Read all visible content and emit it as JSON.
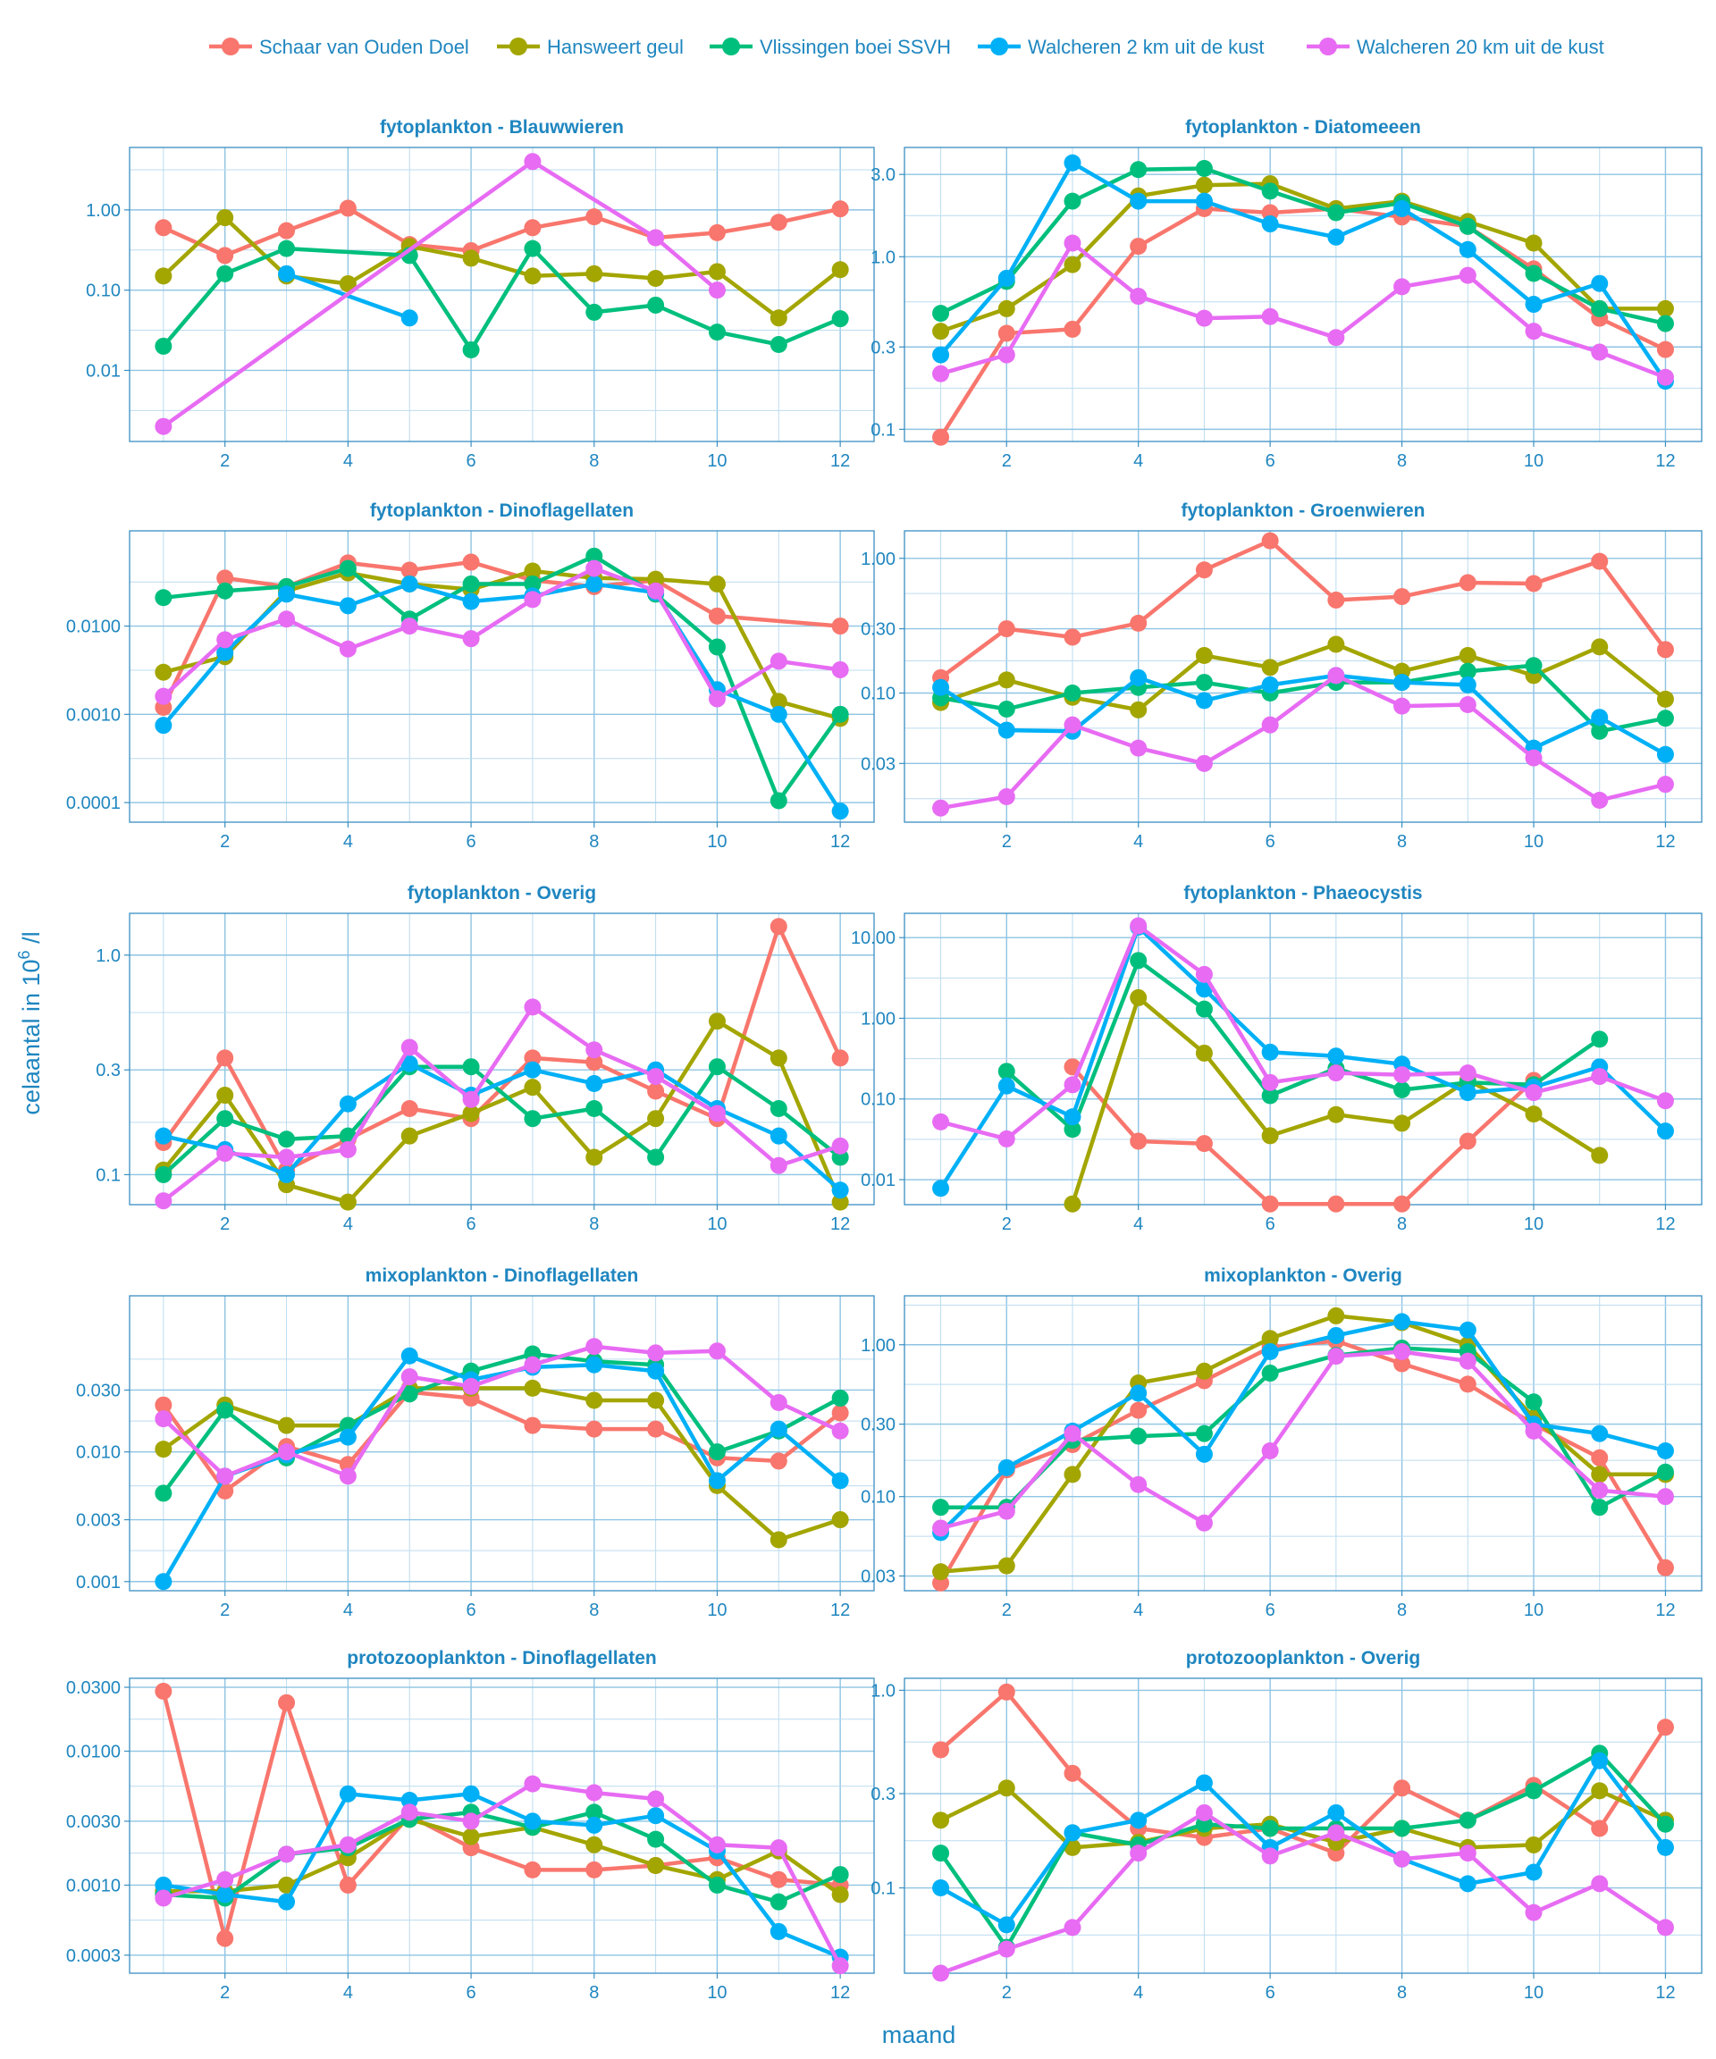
{
  "chart_data": {
    "type": "line",
    "xlabel": "maand",
    "ylabel_prefix": "celaantal in ",
    "ylabel_base": "10",
    "ylabel_exp": "6",
    "ylabel_suffix": " /l",
    "x_ticks": [
      2,
      4,
      6,
      8,
      10,
      12
    ],
    "x_range": [
      0.45,
      12.55
    ],
    "yscale": "log10",
    "series_info": [
      {
        "name": "Schaar van Ouden Doel",
        "color": "#F8766D"
      },
      {
        "name": "Hansweert geul",
        "color": "#A3A500"
      },
      {
        "name": "Vlissingen boei SSVH",
        "color": "#00BF7D"
      },
      {
        "name": "Walcheren 2 km uit de kust",
        "color": "#00B0F6"
      },
      {
        "name": "Walcheren 20 km uit de kust",
        "color": "#E76BF3"
      }
    ],
    "panels": [
      {
        "title": "fytoplankton - Blauwwieren",
        "ylim": [
          0.0013,
          6
        ],
        "ytick_values": [
          0.01,
          0.1,
          1
        ],
        "ytick_labels": [
          "0.01",
          "0.10",
          "1.00"
        ],
        "series": [
          [
            0.6,
            0.27,
            0.55,
            1.05,
            0.37,
            0.31,
            0.6,
            0.82,
            0.45,
            0.52,
            0.7,
            1.03
          ],
          [
            0.15,
            0.8,
            0.15,
            0.12,
            0.35,
            0.25,
            0.15,
            0.16,
            0.14,
            0.17,
            0.045,
            0.18
          ],
          [
            0.02,
            0.16,
            0.33,
            null,
            0.27,
            0.018,
            0.33,
            0.053,
            0.065,
            0.03,
            0.021,
            0.044
          ],
          [
            null,
            null,
            0.16,
            null,
            0.045,
            null,
            null,
            null,
            null,
            null,
            null,
            null
          ],
          [
            0.002,
            null,
            null,
            null,
            null,
            null,
            4.0,
            null,
            0.45,
            0.1,
            null,
            null
          ]
        ]
      },
      {
        "title": "fytoplankton - Diatomeeen",
        "ylim": [
          0.085,
          4.3
        ],
        "ytick_values": [
          0.1,
          0.3,
          1,
          3
        ],
        "ytick_labels": [
          "0.1",
          "0.3",
          "1.0",
          "3.0"
        ],
        "series": [
          [
            0.09,
            0.36,
            0.38,
            1.15,
            1.9,
            1.8,
            1.9,
            1.7,
            1.5,
            0.85,
            0.44,
            0.29
          ],
          [
            0.37,
            0.5,
            0.9,
            2.25,
            2.6,
            2.65,
            1.9,
            2.1,
            1.6,
            1.2,
            0.5,
            0.5
          ],
          [
            0.47,
            0.72,
            2.1,
            3.2,
            3.25,
            2.4,
            1.8,
            2.05,
            1.5,
            0.8,
            0.5,
            0.41
          ],
          [
            0.27,
            0.75,
            3.5,
            2.1,
            2.1,
            1.55,
            1.3,
            1.9,
            1.1,
            0.53,
            0.7,
            0.19
          ],
          [
            0.21,
            0.27,
            1.2,
            0.59,
            0.44,
            0.45,
            0.34,
            0.67,
            0.78,
            0.37,
            0.28,
            0.2
          ]
        ]
      },
      {
        "title": "fytoplankton - Dinoflagellaten",
        "ylim": [
          6e-05,
          0.12
        ],
        "ytick_values": [
          0.0001,
          0.001,
          0.01
        ],
        "ytick_labels": [
          "0.0001",
          "0.0010",
          "0.0100"
        ],
        "series": [
          [
            0.0012,
            0.035,
            0.028,
            0.052,
            0.043,
            0.053,
            0.033,
            0.028,
            0.033,
            0.013,
            null,
            0.01
          ],
          [
            0.003,
            0.0045,
            0.025,
            0.04,
            0.03,
            0.026,
            0.042,
            0.035,
            0.034,
            0.03,
            0.0014,
            0.0009
          ],
          [
            0.021,
            0.025,
            0.028,
            0.045,
            0.012,
            0.03,
            0.03,
            0.062,
            0.023,
            0.0058,
            0.000105,
            0.001
          ],
          [
            0.00075,
            0.005,
            0.023,
            0.017,
            0.03,
            0.019,
            0.022,
            0.03,
            0.024,
            0.0019,
            0.001,
            8e-05
          ],
          [
            0.0016,
            0.007,
            0.012,
            0.0055,
            0.01,
            0.0072,
            0.02,
            0.045,
            0.025,
            0.0015,
            0.004,
            0.0032
          ]
        ]
      },
      {
        "title": "fytoplankton - Groenwieren",
        "ylim": [
          0.011,
          1.6
        ],
        "ytick_values": [
          0.03,
          0.1,
          0.3,
          1
        ],
        "ytick_labels": [
          "0.03",
          "0.10",
          "0.30",
          "1.00"
        ],
        "series": [
          [
            0.13,
            0.3,
            0.26,
            0.33,
            0.82,
            1.35,
            0.49,
            0.52,
            0.66,
            0.65,
            0.95,
            0.21
          ],
          [
            0.085,
            0.125,
            0.093,
            0.075,
            0.19,
            0.155,
            0.23,
            0.145,
            0.19,
            0.135,
            0.22,
            0.09
          ],
          [
            0.092,
            0.076,
            0.1,
            0.11,
            0.12,
            0.1,
            0.12,
            0.12,
            0.145,
            0.16,
            0.052,
            0.065
          ],
          [
            0.11,
            0.053,
            0.052,
            0.13,
            0.088,
            0.115,
            0.135,
            0.12,
            0.115,
            0.039,
            0.066,
            0.035
          ],
          [
            0.014,
            0.017,
            0.058,
            0.039,
            0.03,
            0.058,
            0.135,
            0.08,
            0.082,
            0.033,
            0.016,
            0.021
          ]
        ]
      },
      {
        "title": "fytoplankton - Overig",
        "ylim": [
          0.073,
          1.55
        ],
        "ytick_values": [
          0.1,
          0.3,
          1
        ],
        "ytick_labels": [
          "0.1",
          "0.3",
          "1.0"
        ],
        "series": [
          [
            0.14,
            0.34,
            0.105,
            0.145,
            0.2,
            0.18,
            0.34,
            0.325,
            0.24,
            0.18,
            1.35,
            0.34
          ],
          [
            0.105,
            0.23,
            0.09,
            0.075,
            0.15,
            0.19,
            0.25,
            0.12,
            0.18,
            0.5,
            0.34,
            0.075
          ],
          [
            0.1,
            0.18,
            0.145,
            0.15,
            0.31,
            0.31,
            0.18,
            0.2,
            0.12,
            0.31,
            0.2,
            0.12
          ],
          [
            0.15,
            0.13,
            0.1,
            0.21,
            0.32,
            0.23,
            0.3,
            0.26,
            0.3,
            0.2,
            0.15,
            0.085
          ],
          [
            0.076,
            0.125,
            0.12,
            0.13,
            0.38,
            0.22,
            0.58,
            0.37,
            0.28,
            0.19,
            0.11,
            0.135
          ]
        ]
      },
      {
        "title": "fytoplankton - Phaeocystis",
        "ylim": [
          0.0049,
          20
        ],
        "ytick_values": [
          0.01,
          0.1,
          1,
          10
        ],
        "ytick_labels": [
          "0.01",
          "0.10",
          "1.00",
          "10.00"
        ],
        "series": [
          [
            null,
            null,
            0.25,
            0.03,
            0.028,
            0.005,
            0.005,
            0.005,
            0.03,
            0.17,
            null,
            null
          ],
          [
            null,
            null,
            0.005,
            1.8,
            0.37,
            0.035,
            0.064,
            0.05,
            0.17,
            0.065,
            0.02,
            null
          ],
          [
            null,
            0.22,
            0.042,
            5.2,
            1.3,
            0.11,
            0.24,
            0.13,
            0.16,
            0.15,
            0.55,
            null
          ],
          [
            0.0078,
            0.145,
            0.06,
            13.5,
            2.3,
            0.38,
            0.34,
            0.27,
            0.12,
            0.14,
            0.25,
            0.04
          ],
          [
            0.052,
            0.032,
            0.15,
            14,
            3.5,
            0.16,
            0.21,
            0.2,
            0.21,
            0.12,
            0.19,
            0.095
          ]
        ]
      },
      {
        "title": "mixoplankton - Dinoflagellaten",
        "ylim": [
          0.00085,
          0.16
        ],
        "ytick_values": [
          0.001,
          0.003,
          0.01,
          0.03
        ],
        "ytick_labels": [
          "0.001",
          "0.003",
          "0.010",
          "0.030"
        ],
        "series": [
          [
            0.023,
            0.005,
            0.011,
            0.008,
            0.029,
            0.026,
            0.016,
            0.015,
            0.015,
            0.009,
            0.0085,
            0.02
          ],
          [
            0.0105,
            0.023,
            0.016,
            0.016,
            0.031,
            0.031,
            0.031,
            0.025,
            0.025,
            0.0055,
            0.0021,
            0.003
          ],
          [
            0.0048,
            0.021,
            0.009,
            0.016,
            0.028,
            0.042,
            0.057,
            0.05,
            0.047,
            0.01,
            0.0145,
            0.026
          ],
          [
            0.001,
            0.0065,
            0.0095,
            0.013,
            0.055,
            0.036,
            0.045,
            0.047,
            0.042,
            0.006,
            0.015,
            0.006
          ],
          [
            0.018,
            0.0065,
            0.01,
            0.0065,
            0.038,
            0.032,
            0.047,
            0.065,
            0.058,
            0.06,
            0.024,
            0.0145
          ]
        ]
      },
      {
        "title": "mixoplankton - Overig",
        "ylim": [
          0.024,
          2.1
        ],
        "ytick_values": [
          0.03,
          0.1,
          0.3,
          1
        ],
        "ytick_labels": [
          "0.03",
          "0.10",
          "0.30",
          "1.00"
        ],
        "series": [
          [
            0.027,
            0.15,
            0.22,
            0.37,
            0.58,
            0.96,
            1.06,
            0.75,
            0.55,
            0.3,
            0.18,
            0.034
          ],
          [
            0.032,
            0.035,
            0.14,
            0.56,
            0.67,
            1.1,
            1.55,
            1.4,
            1.0,
            0.33,
            0.14,
            0.14
          ],
          [
            0.085,
            0.085,
            0.235,
            0.25,
            0.26,
            0.65,
            0.85,
            0.95,
            0.9,
            0.42,
            0.085,
            0.145
          ],
          [
            0.058,
            0.155,
            0.27,
            0.48,
            0.19,
            0.9,
            1.15,
            1.42,
            1.25,
            0.3,
            0.26,
            0.2
          ],
          [
            0.062,
            0.08,
            0.26,
            0.12,
            0.067,
            0.2,
            0.84,
            0.9,
            0.78,
            0.27,
            0.11,
            0.1
          ]
        ]
      },
      {
        "title": "protozooplankton - Dinoflagellaten",
        "ylim": [
          0.00022,
          0.035
        ],
        "ytick_values": [
          0.0003,
          0.001,
          0.003,
          0.01,
          0.03
        ],
        "ytick_labels": [
          "0.0003",
          "0.0010",
          "0.0030",
          "0.0100",
          "0.0300"
        ],
        "series": [
          [
            0.028,
            0.0004,
            0.023,
            0.001,
            0.0033,
            0.0019,
            0.0013,
            0.0013,
            0.0014,
            0.0016,
            0.0011,
            0.001
          ],
          [
            0.0009,
            0.0009,
            0.001,
            0.0016,
            0.0031,
            0.0023,
            0.0027,
            0.002,
            0.0014,
            0.0011,
            0.0018,
            0.00085
          ],
          [
            0.00085,
            0.0008,
            0.0017,
            0.0019,
            0.0031,
            0.0035,
            0.0027,
            0.0035,
            0.0022,
            0.001,
            0.00075,
            0.0012
          ],
          [
            0.001,
            0.00085,
            0.00075,
            0.0048,
            0.0043,
            0.0048,
            0.003,
            0.0028,
            0.0033,
            0.0018,
            0.00045,
            0.00029
          ],
          [
            0.0008,
            0.0011,
            0.0017,
            0.002,
            0.0035,
            0.003,
            0.0057,
            0.0049,
            0.0044,
            0.002,
            0.0019,
            0.00025
          ]
        ]
      },
      {
        "title": "protozooplankton - Overig",
        "ylim": [
          0.037,
          1.15
        ],
        "ytick_values": [
          0.1,
          0.3,
          1
        ],
        "ytick_labels": [
          "0.1",
          "0.3",
          "1.0"
        ],
        "series": [
          [
            0.5,
            0.98,
            0.38,
            0.2,
            0.18,
            0.2,
            0.15,
            0.32,
            0.22,
            0.33,
            0.2,
            0.65
          ],
          [
            0.22,
            0.32,
            0.16,
            0.17,
            0.2,
            0.21,
            0.17,
            0.2,
            0.16,
            0.165,
            0.31,
            0.22
          ],
          [
            0.15,
            0.05,
            0.19,
            0.165,
            0.21,
            0.2,
            0.2,
            0.2,
            0.22,
            0.31,
            0.48,
            0.21
          ],
          [
            0.1,
            0.065,
            0.19,
            0.22,
            0.34,
            0.16,
            0.24,
            0.14,
            0.105,
            0.12,
            0.44,
            0.16
          ],
          [
            0.037,
            0.049,
            0.063,
            0.15,
            0.24,
            0.145,
            0.19,
            0.14,
            0.15,
            0.075,
            0.105,
            0.063
          ]
        ]
      }
    ]
  }
}
